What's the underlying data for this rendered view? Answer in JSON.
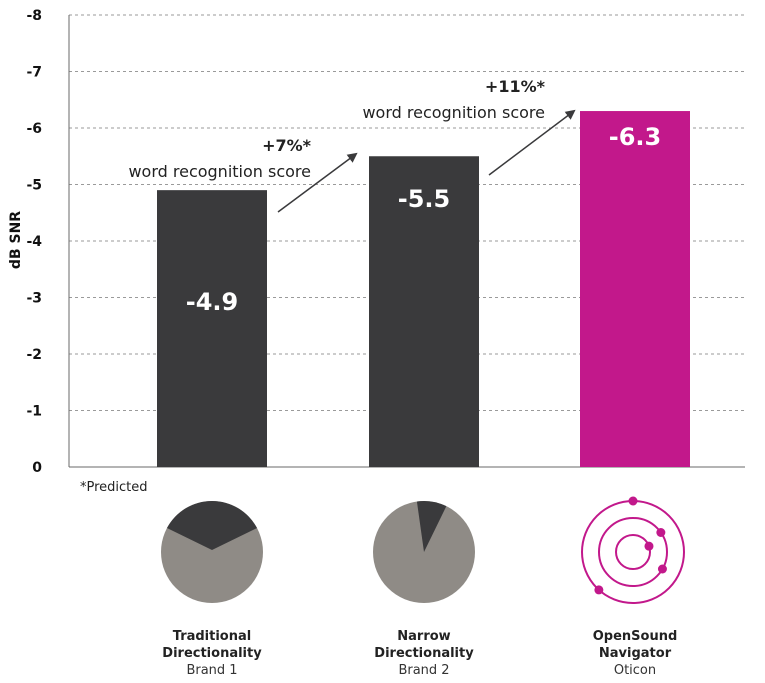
{
  "colors": {
    "dark_bar": "#3a3a3c",
    "accent_bar": "#c2188b",
    "pie_light": "#8f8b86",
    "pie_dark": "#3a3a3c",
    "grid": "#9a9a9a",
    "arrow": "#3a3a3c"
  },
  "chart_data": {
    "type": "bar",
    "ylabel": "dB SNR",
    "ylim": [
      0,
      -8
    ],
    "yticks": [
      "0",
      "-1",
      "-2",
      "-3",
      "-4",
      "-5",
      "-6",
      "-7",
      "-8"
    ],
    "grid": "dashed horizontal",
    "categories": [
      "Traditional Directionality",
      "Narrow Directionality",
      "OpenSound Navigator"
    ],
    "values": [
      -4.9,
      -5.5,
      -6.3
    ],
    "value_labels": [
      "-4.9",
      "-5.5",
      "-6.3"
    ],
    "bar_colors": [
      "dark",
      "dark",
      "accent"
    ],
    "annotations": [
      {
        "pct": "+7%*",
        "text": "word recognition score",
        "from": 0,
        "to": 1
      },
      {
        "pct": "+11%*",
        "text": "word recognition score",
        "from": 1,
        "to": 2
      }
    ],
    "footnote": "*Predicted"
  },
  "captions": [
    {
      "title_lines": [
        "Traditional",
        "Directionality"
      ],
      "brand": "Brand 1",
      "icon": "wide-pie-icon"
    },
    {
      "title_lines": [
        "Narrow",
        "Directionality"
      ],
      "brand": "Brand 2",
      "icon": "narrow-pie-icon"
    },
    {
      "title_lines": [
        "OpenSound",
        "Navigator"
      ],
      "brand": "Oticon",
      "icon": "orbit-rings-icon"
    }
  ]
}
